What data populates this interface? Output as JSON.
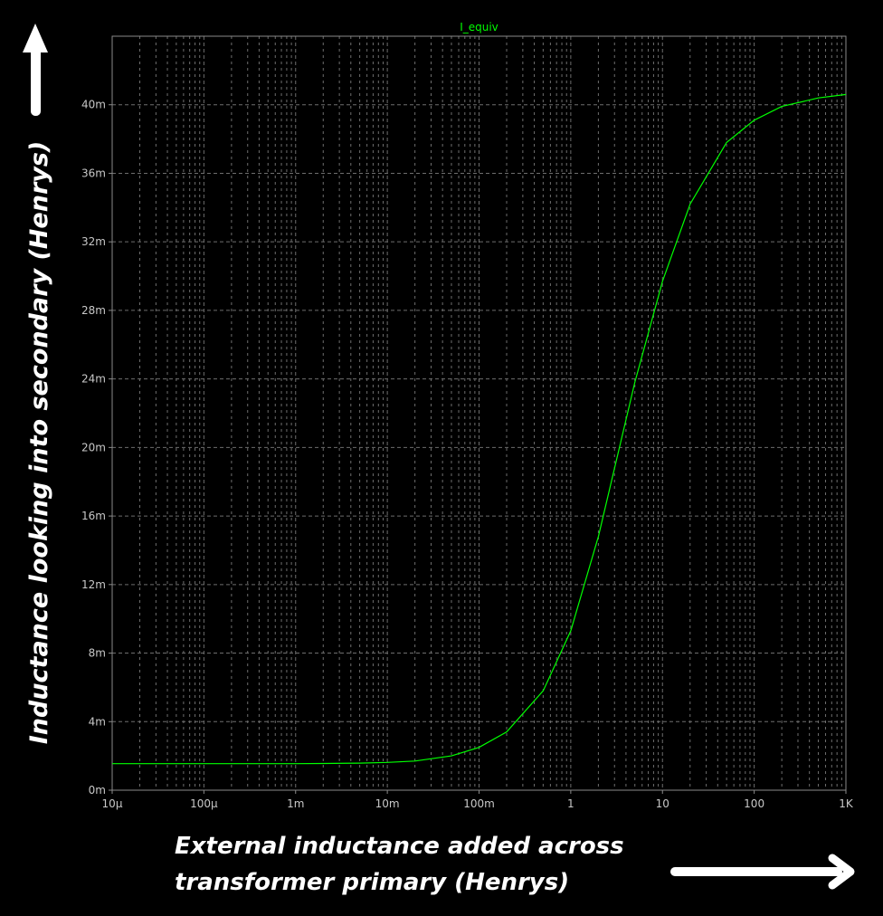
{
  "chart_data": {
    "type": "line",
    "title": "I_equiv",
    "ylabel": "Inductance looking into secondary (Henrys)",
    "xlabel_lines": [
      "External inductance added across",
      "transformer primary (Henrys)"
    ],
    "xscale": "log",
    "xlim": [
      1e-05,
      1000
    ],
    "ylim": [
      0,
      0.044
    ],
    "x_ticks": [
      {
        "value": 1e-05,
        "label": "10µ"
      },
      {
        "value": 0.0001,
        "label": "100µ"
      },
      {
        "value": 0.001,
        "label": "1m"
      },
      {
        "value": 0.01,
        "label": "10m"
      },
      {
        "value": 0.1,
        "label": "100m"
      },
      {
        "value": 1,
        "label": "1"
      },
      {
        "value": 10,
        "label": "10"
      },
      {
        "value": 100,
        "label": "100"
      },
      {
        "value": 1000,
        "label": "1K"
      }
    ],
    "y_ticks": [
      {
        "value": 0,
        "label": "0m"
      },
      {
        "value": 0.004,
        "label": "4m"
      },
      {
        "value": 0.008,
        "label": "8m"
      },
      {
        "value": 0.012,
        "label": "12m"
      },
      {
        "value": 0.016,
        "label": "16m"
      },
      {
        "value": 0.02,
        "label": "20m"
      },
      {
        "value": 0.024,
        "label": "24m"
      },
      {
        "value": 0.028,
        "label": "28m"
      },
      {
        "value": 0.032,
        "label": "32m"
      },
      {
        "value": 0.036,
        "label": "36m"
      },
      {
        "value": 0.04,
        "label": "40m"
      }
    ],
    "grid": true,
    "series": [
      {
        "name": "I_equiv",
        "color": "#00ff00",
        "x": [
          1e-05,
          0.0001,
          0.001,
          0.002,
          0.005,
          0.01,
          0.02,
          0.05,
          0.1,
          0.2,
          0.5,
          1,
          2,
          5,
          10,
          20,
          50,
          100,
          200,
          500,
          1000
        ],
        "y": [
          0.00155,
          0.00155,
          0.00155,
          0.00156,
          0.00158,
          0.00162,
          0.0017,
          0.002,
          0.0025,
          0.0034,
          0.0058,
          0.0093,
          0.0148,
          0.0238,
          0.0297,
          0.0342,
          0.0378,
          0.0391,
          0.0399,
          0.0404,
          0.0406
        ]
      }
    ]
  },
  "colors": {
    "background": "#000000",
    "grid": "#6e6e6e",
    "frame": "#8a8a8a",
    "trace": "#00ff00",
    "tick_label": "#c8c8c8",
    "annotation": "#ffffff"
  },
  "icons": {
    "y_arrow": "up-arrow-icon",
    "x_arrow": "right-arrow-icon"
  }
}
